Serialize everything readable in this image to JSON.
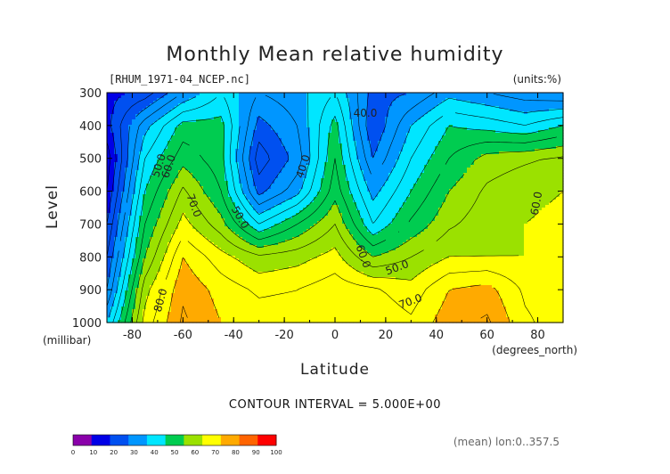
{
  "chart_data": {
    "type": "heatmap",
    "title": "Monthly Mean relative humidity",
    "file_label": "[RHUM_1971-04_NCEP.nc]",
    "units_label": "(units:%)",
    "xlabel": "Latitude",
    "x_units": "(degrees_north)",
    "ylabel": "Level",
    "y_units": "(millibar)",
    "xlim": [
      -90,
      90
    ],
    "ylim": [
      1000,
      300
    ],
    "x_ticks": [
      "-80",
      "-60",
      "-40",
      "-20",
      "0",
      "20",
      "40",
      "60",
      "80"
    ],
    "y_ticks": [
      "300",
      "400",
      "500",
      "600",
      "700",
      "800",
      "900",
      "1000"
    ],
    "contour_interval_text": "CONTOUR INTERVAL = 5.000E+00",
    "mean_text": "(mean) lon:0..357.5",
    "colorbar": {
      "ticks": [
        "0",
        "10",
        "20",
        "30",
        "40",
        "50",
        "60",
        "70",
        "80",
        "90",
        "100"
      ],
      "colors": [
        "#8a00aa",
        "#0000e6",
        "#0050f0",
        "#0096ff",
        "#00e6ff",
        "#00cc50",
        "#9be100",
        "#ffff00",
        "#ffaa00",
        "#ff6400",
        "#ff0000"
      ]
    },
    "contour_labels": [
      "40.0",
      "40.0",
      "50.0",
      "50.0",
      "50.0",
      "60.0",
      "60.0",
      "60.0",
      "70.0",
      "70.0",
      "80.0"
    ],
    "x": [
      -90,
      -75,
      -60,
      -45,
      -30,
      -15,
      0,
      15,
      30,
      45,
      60,
      75,
      90
    ],
    "y": [
      300,
      400,
      500,
      600,
      700,
      800,
      900,
      1000
    ],
    "z": [
      [
        18,
        22,
        35,
        45,
        35,
        38,
        45,
        28,
        30,
        38,
        35,
        32,
        30
      ],
      [
        18,
        38,
        52,
        52,
        28,
        35,
        52,
        25,
        40,
        50,
        48,
        45,
        50
      ],
      [
        12,
        45,
        58,
        52,
        22,
        32,
        55,
        30,
        45,
        55,
        62,
        64,
        66
      ],
      [
        15,
        50,
        66,
        55,
        28,
        38,
        58,
        38,
        50,
        60,
        66,
        69,
        70
      ],
      [
        20,
        55,
        72,
        62,
        45,
        55,
        65,
        45,
        56,
        64,
        68,
        70,
        71
      ],
      [
        25,
        60,
        80,
        72,
        66,
        68,
        72,
        60,
        65,
        70,
        70,
        70,
        70
      ],
      [
        30,
        68,
        84,
        78,
        74,
        75,
        78,
        76,
        72,
        80,
        82,
        74,
        72
      ],
      [
        40,
        72,
        86,
        80,
        78,
        78,
        80,
        79,
        76,
        83,
        86,
        76,
        72
      ]
    ]
  }
}
